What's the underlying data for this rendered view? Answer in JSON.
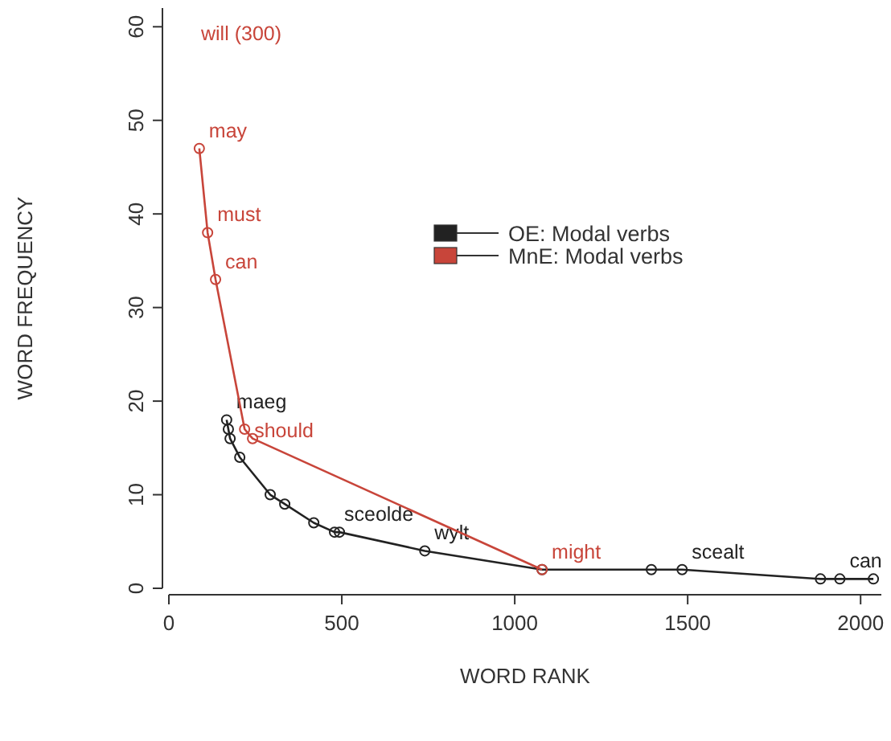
{
  "chart_data": {
    "type": "line",
    "xlabel": "WORD RANK",
    "ylabel": "WORD FREQUENCY",
    "xlim": [
      0,
      2060
    ],
    "ylim": [
      0,
      62
    ],
    "xticks": [
      0,
      500,
      1000,
      1500,
      2000
    ],
    "yticks": [
      0,
      10,
      20,
      30,
      40,
      50,
      60
    ],
    "grid": false,
    "legend": "right",
    "marker": "circle",
    "line_style": "solid",
    "series": [
      {
        "name": "OE: Modal verbs",
        "color": "#222222",
        "x": [
          167,
          172,
          177,
          205,
          293,
          335,
          419,
          479,
          493,
          740,
          1079,
          1395,
          1484,
          1884,
          1940,
          2037
        ],
        "values": [
          18,
          17,
          16,
          14,
          10,
          9,
          7,
          6,
          6,
          4,
          2,
          2,
          2,
          1,
          1,
          1
        ],
        "value_labels": [
          "maeg",
          null,
          null,
          null,
          null,
          null,
          null,
          "sceolde",
          null,
          "wylt",
          null,
          null,
          "scealt",
          null,
          "can",
          null
        ]
      },
      {
        "name": "MnE: Modal verbs",
        "color": "#c8453a",
        "x": [
          88,
          112,
          135,
          219,
          242,
          1079
        ],
        "values": [
          47,
          38,
          33,
          17,
          16,
          2
        ],
        "value_labels": [
          "may",
          "must",
          "can",
          "should",
          null,
          "might"
        ]
      }
    ],
    "annotations": [
      "will (300)"
    ]
  }
}
